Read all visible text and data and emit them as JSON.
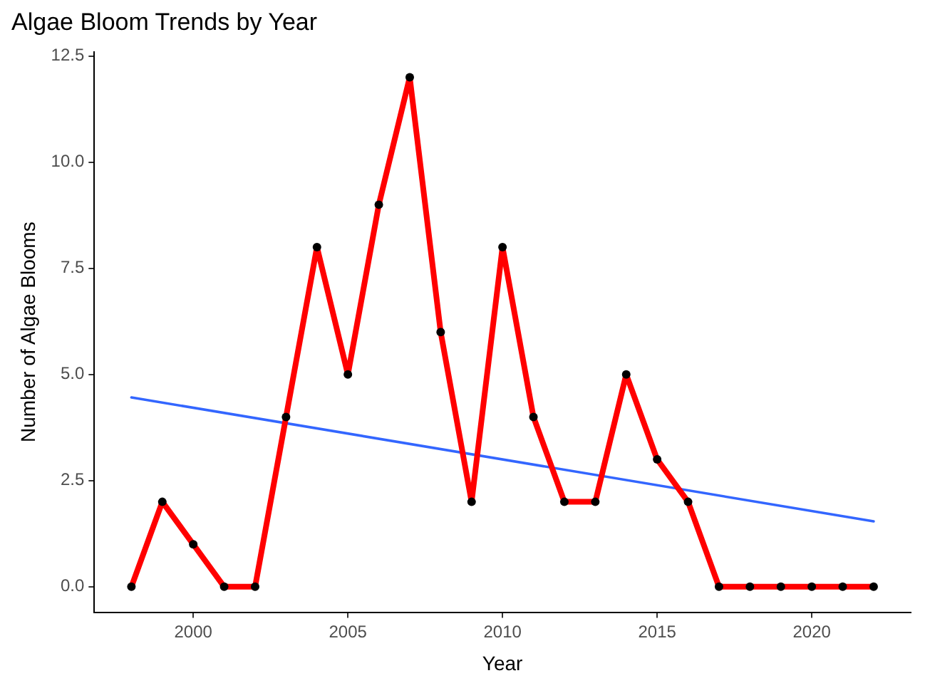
{
  "chart_data": {
    "type": "line",
    "title": "Algae Bloom Trends by Year",
    "xlabel": "Year",
    "ylabel": "Number of Algae Blooms",
    "x": [
      1998,
      1999,
      2000,
      2001,
      2002,
      2003,
      2004,
      2005,
      2006,
      2007,
      2008,
      2009,
      2010,
      2011,
      2012,
      2013,
      2014,
      2015,
      2016,
      2017,
      2018,
      2019,
      2020,
      2021,
      2022
    ],
    "series": [
      {
        "color": "#ff0000",
        "marker": "none",
        "values": [
          0,
          2,
          1,
          0,
          0,
          4,
          8,
          5,
          9,
          12,
          6,
          2,
          8,
          4,
          2,
          2,
          5,
          3,
          2,
          0,
          0,
          0,
          0,
          0,
          0
        ]
      },
      {
        "type": "scatter",
        "color": "#000000",
        "marker": "circle",
        "values": [
          0,
          2,
          1,
          0,
          0,
          4,
          8,
          5,
          9,
          12,
          6,
          2,
          8,
          4,
          2,
          2,
          5,
          3,
          2,
          0,
          0,
          0,
          0,
          0,
          0
        ]
      },
      {
        "color": "#3366ff",
        "marker": "none",
        "x": [
          1998,
          2022
        ],
        "values": [
          4.46,
          1.54
        ]
      }
    ],
    "xlim": [
      1996.8,
      2023.2
    ],
    "xticks": [
      2000,
      2005,
      2010,
      2015,
      2020
    ],
    "ylim": [
      -0.6,
      12.6
    ],
    "yticks": [
      {
        "value": 0,
        "label": "0.0"
      },
      {
        "value": 2.5,
        "label": "2.5"
      },
      {
        "value": 5,
        "label": "5.0"
      },
      {
        "value": 7.5,
        "label": "7.5"
      },
      {
        "value": 10,
        "label": "10.0"
      },
      {
        "value": 12.5,
        "label": "12.5"
      }
    ],
    "grid": false,
    "legend": false
  }
}
